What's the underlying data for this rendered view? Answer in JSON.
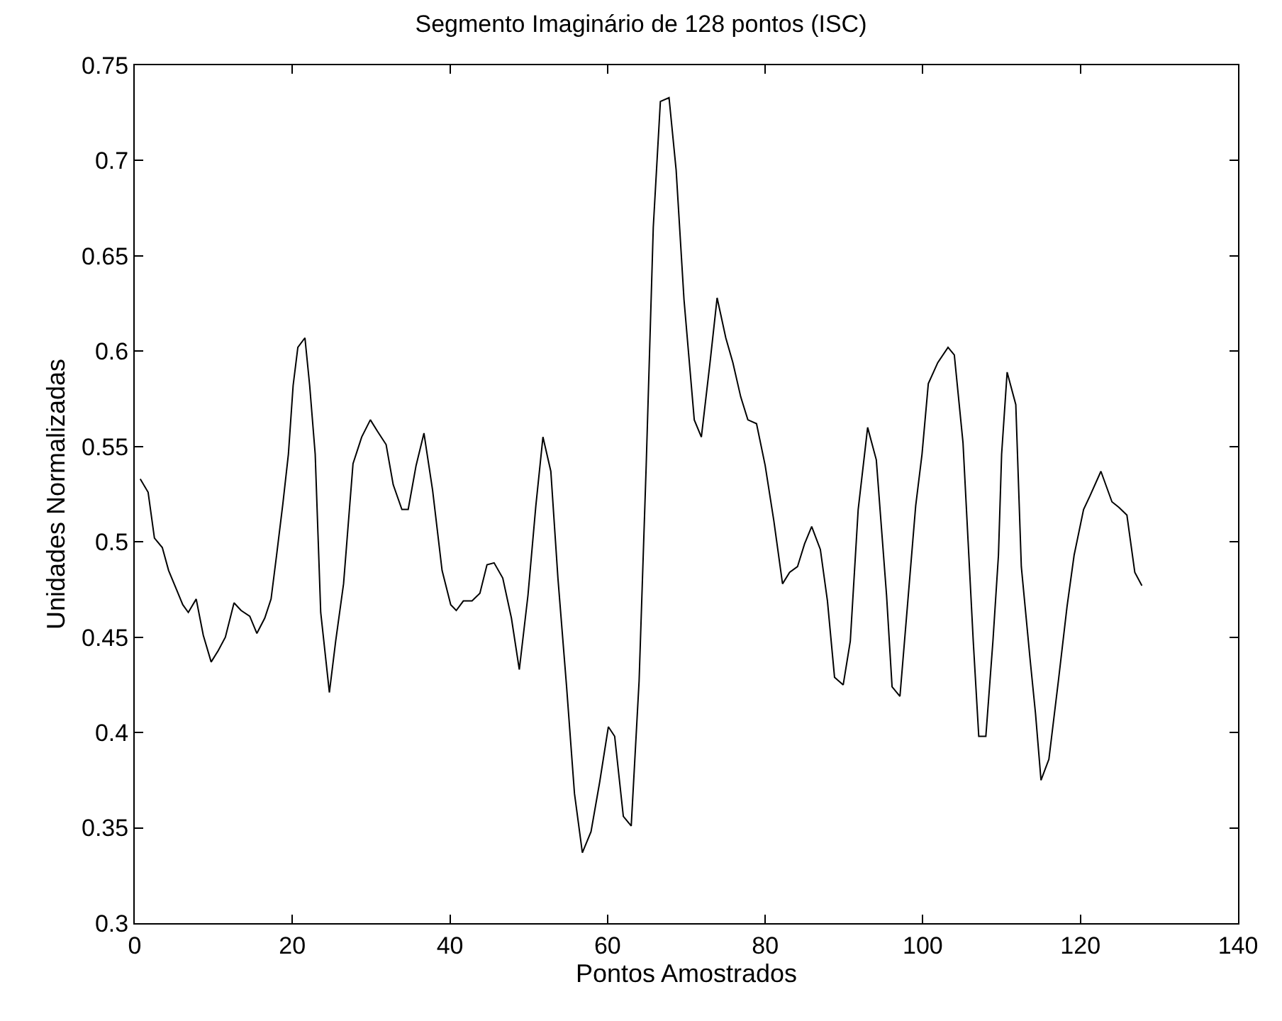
{
  "chart_data": {
    "type": "line",
    "title": "Segmento Imaginário de 128 pontos (ISC)",
    "xlabel": "Pontos Amostrados",
    "ylabel": "Unidades Normalizadas",
    "x": [
      0.7,
      1.7,
      2.5,
      3.5,
      4.3,
      5.3,
      6.1,
      6.8,
      7.8,
      8.7,
      9.7,
      10.6,
      11.5,
      12.6,
      13.5,
      14.6,
      15.5,
      16.5,
      17.3,
      18,
      18.8,
      19.5,
      20.1,
      20.7,
      21.6,
      22.2,
      22.9,
      23.6,
      24.7,
      25.5,
      26.5,
      27.7,
      28.8,
      29.9,
      30.8,
      31.9,
      32.8,
      33.9,
      34.7,
      35.7,
      36.7,
      37.8,
      39,
      40.1,
      40.8,
      41.7,
      42.8,
      43.8,
      44.7,
      45.6,
      46.7,
      47.8,
      48.8,
      49.9,
      50.9,
      51.8,
      52.8,
      53.7,
      54.8,
      55.8,
      56.8,
      57.9,
      59,
      60.1,
      60.9,
      62,
      63,
      64,
      64.9,
      65.8,
      66.7,
      67.8,
      68.7,
      69.7,
      71,
      71.9,
      73,
      73.9,
      75,
      75.9,
      76.9,
      77.8,
      78.9,
      80,
      81.1,
      82.2,
      83.1,
      84.1,
      85,
      85.9,
      87,
      87.9,
      88.8,
      89.9,
      90.8,
      91.8,
      93,
      94.1,
      95.4,
      96.1,
      97.1,
      98.1,
      99.1,
      99.9,
      100.7,
      101.9,
      103.2,
      104,
      105.1,
      105.8,
      106.4,
      107.1,
      108,
      108.9,
      109.6,
      110,
      110.7,
      111.8,
      112.5,
      113.6,
      114.3,
      115,
      116,
      117.2,
      118.3,
      119.2,
      120.4,
      121.2,
      122.6,
      124,
      124.9,
      125.9,
      126.9,
      127.8
    ],
    "series": [
      {
        "color": "#000000",
        "values": [
          0.533,
          0.526,
          0.502,
          0.497,
          0.485,
          0.475,
          0.467,
          0.463,
          0.47,
          0.451,
          0.437,
          0.443,
          0.45,
          0.468,
          0.464,
          0.461,
          0.452,
          0.46,
          0.47,
          0.493,
          0.52,
          0.546,
          0.582,
          0.602,
          0.607,
          0.582,
          0.546,
          0.463,
          0.421,
          0.448,
          0.478,
          0.541,
          0.555,
          0.564,
          0.558,
          0.551,
          0.53,
          0.517,
          0.517,
          0.54,
          0.557,
          0.527,
          0.485,
          0.467,
          0.464,
          0.469,
          0.469,
          0.473,
          0.488,
          0.489,
          0.481,
          0.46,
          0.433,
          0.472,
          0.519,
          0.555,
          0.537,
          0.481,
          0.424,
          0.368,
          0.337,
          0.348,
          0.374,
          0.403,
          0.398,
          0.356,
          0.351,
          0.427,
          0.54,
          0.665,
          0.731,
          0.733,
          0.695,
          0.627,
          0.564,
          0.555,
          0.594,
          0.628,
          0.607,
          0.594,
          0.576,
          0.564,
          0.562,
          0.54,
          0.511,
          0.478,
          0.484,
          0.487,
          0.499,
          0.508,
          0.496,
          0.469,
          0.429,
          0.425,
          0.448,
          0.517,
          0.56,
          0.543,
          0.472,
          0.424,
          0.419,
          0.469,
          0.519,
          0.546,
          0.583,
          0.594,
          0.602,
          0.598,
          0.552,
          0.496,
          0.448,
          0.398,
          0.398,
          0.448,
          0.493,
          0.546,
          0.589,
          0.572,
          0.487,
          0.439,
          0.41,
          0.375,
          0.386,
          0.427,
          0.466,
          0.493,
          0.517,
          0.524,
          0.537,
          0.521,
          0.518,
          0.514,
          0.484,
          0.477
        ]
      }
    ],
    "xlim": [
      0,
      140
    ],
    "xticks": [
      0,
      20,
      40,
      60,
      80,
      100,
      120,
      140
    ],
    "ylim": [
      0.3,
      0.75
    ],
    "yticks": [
      0.3,
      0.35,
      0.4,
      0.45,
      0.5,
      0.55,
      0.6,
      0.65,
      0.7,
      0.75
    ],
    "marker": "none",
    "line_style": "solid"
  }
}
